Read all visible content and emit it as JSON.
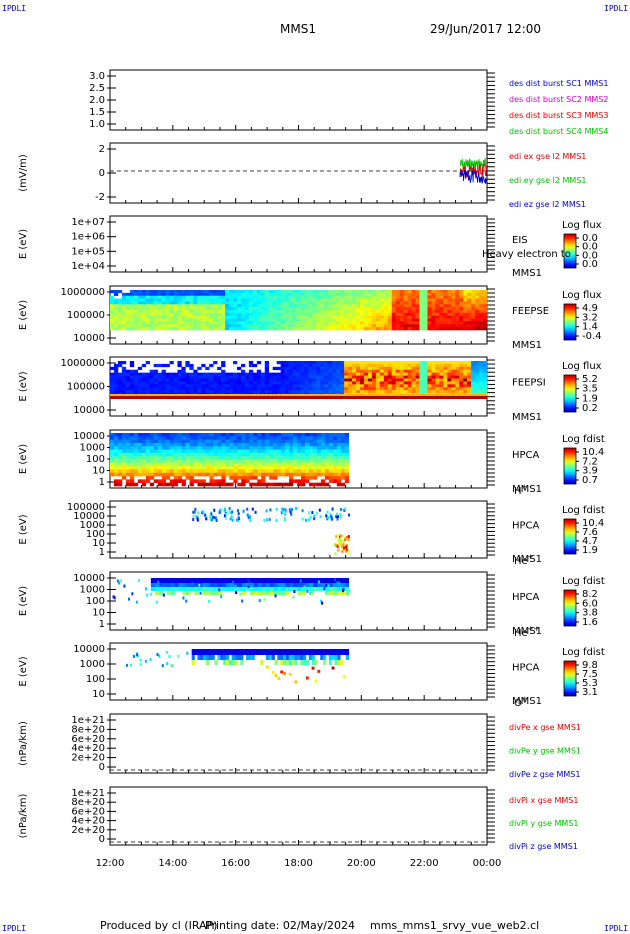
{
  "header": {
    "spacecraft": "MMS1",
    "datetime": "29/Jun/2017 12:00",
    "corner_logo": "IPDLI"
  },
  "footer": {
    "produced": "Produced by cl (IRAP)",
    "printing": "Printing date: 02/May/2024",
    "file": "mms_mms1_srvy_vue_web2.cl"
  },
  "colors": {
    "blue": "#0000c8",
    "magenta": "#d000d0",
    "red": "#e00000",
    "green": "#00c000"
  },
  "chart_data": {
    "type": "heatmap",
    "xticks": [
      "12:00",
      "14:00",
      "16:00",
      "18:00",
      "20:00",
      "22:00",
      "00:00"
    ],
    "panels": [
      {
        "id": "dist",
        "type": "line",
        "ylabel": "",
        "yticks": [
          "3.0",
          "2.5",
          "2.0",
          "1.5",
          "1.0"
        ],
        "legend": [
          {
            "text": "des dist burst SC1 MMS1",
            "color": "#0000c8"
          },
          {
            "text": "des dist burst SC2 MMS2",
            "color": "#d000d0"
          },
          {
            "text": "des dist burst SC3 MMS3",
            "color": "#e00000"
          },
          {
            "text": "des dist burst SC4 MMS4",
            "color": "#00c000"
          }
        ]
      },
      {
        "id": "edi",
        "type": "line",
        "ylabel": "(mV/m)",
        "yticks": [
          "2",
          "0",
          "-2"
        ],
        "legend": [
          {
            "text": "edi ex gse l2 MMS1",
            "color": "#e00000"
          },
          {
            "text": "edi ey gse l2 MMS1",
            "color": "#00c000"
          },
          {
            "text": "edi ez gse l2 MMS1",
            "color": "#0000c8"
          }
        ]
      },
      {
        "id": "eis",
        "type": "heatmap",
        "ylabel": "E (eV)",
        "yticks": [
          "1e+07",
          "1e+06",
          "1e+05",
          "1e+04"
        ],
        "instrument": "EIS",
        "sc": "MMS1",
        "species": "Heavy electron to",
        "cbar_title": "Log flux",
        "cbar_ticks": [
          "0.0",
          "0.0",
          "0.0",
          "0.0"
        ]
      },
      {
        "id": "feepse",
        "type": "heatmap",
        "ylabel": "E (eV)",
        "yticks": [
          "1000000",
          "100000",
          "10000"
        ],
        "instrument": "FEEPSE",
        "sc": "MMS1",
        "cbar_title": "Log flux",
        "cbar_ticks": [
          "4.9",
          "3.2",
          "1.4",
          "-0.4"
        ]
      },
      {
        "id": "feepsi",
        "type": "heatmap",
        "ylabel": "E (eV)",
        "yticks": [
          "1000000",
          "100000",
          "10000"
        ],
        "instrument": "FEEPSI",
        "sc": "MMS1",
        "cbar_title": "Log flux",
        "cbar_ticks": [
          "5.2",
          "3.5",
          "1.9",
          "0.2"
        ]
      },
      {
        "id": "hpca_h",
        "type": "heatmap",
        "ylabel": "E (eV)",
        "yticks": [
          "10000",
          "1000",
          "100",
          "10",
          "1"
        ],
        "instrument": "HPCA",
        "sc": "MMS1",
        "species": "H",
        "charge": "+",
        "cbar_title": "Log fdist",
        "cbar_ticks": [
          "10.4",
          "7.2",
          "3.9",
          "0.7"
        ]
      },
      {
        "id": "hpca_he",
        "type": "heatmap",
        "ylabel": "E (eV)",
        "yticks": [
          "100000",
          "10000",
          "1000",
          "100",
          "10",
          "1"
        ],
        "instrument": "HPCA",
        "sc": "MMS1",
        "species": "He",
        "charge": "+",
        "cbar_title": "Log fdist",
        "cbar_ticks": [
          "10.4",
          "7.6",
          "4.7",
          "1.9"
        ]
      },
      {
        "id": "hpca_hepp",
        "type": "heatmap",
        "ylabel": "E (eV)",
        "yticks": [
          "10000",
          "1000",
          "100",
          "10",
          "1"
        ],
        "instrument": "HPCA",
        "sc": "MMS1",
        "species": "He",
        "charge": "++",
        "cbar_title": "Log fdist",
        "cbar_ticks": [
          "8.2",
          "6.0",
          "3.8",
          "1.6"
        ]
      },
      {
        "id": "hpca_o",
        "type": "heatmap",
        "ylabel": "E (eV)",
        "yticks": [
          "10000",
          "1000",
          "100",
          "10"
        ],
        "instrument": "HPCA",
        "sc": "MMS1",
        "species": "O",
        "charge": "+",
        "cbar_title": "Log fdist",
        "cbar_ticks": [
          "9.8",
          "7.5",
          "5.3",
          "3.1"
        ]
      },
      {
        "id": "divpe",
        "type": "line",
        "ylabel": "(nPa/km)",
        "yticks": [
          "1e+21",
          "8e+20",
          "6e+20",
          "4e+20",
          "2e+20",
          "0"
        ],
        "legend": [
          {
            "text": "divPe x gse MMS1",
            "color": "#e00000"
          },
          {
            "text": "divPe y gse MMS1",
            "color": "#00c000"
          },
          {
            "text": "divPe z gse MMS1",
            "color": "#0000c8"
          }
        ]
      },
      {
        "id": "divpi",
        "type": "line",
        "ylabel": "(nPa/km)",
        "yticks": [
          "1e+21",
          "8e+20",
          "6e+20",
          "4e+20",
          "2e+20",
          "0"
        ],
        "legend": [
          {
            "text": "divPi x gse MMS1",
            "color": "#e00000"
          },
          {
            "text": "divPi y gse MMS1",
            "color": "#00c000"
          },
          {
            "text": "divPi z gse MMS1",
            "color": "#0000c8"
          }
        ]
      }
    ]
  }
}
